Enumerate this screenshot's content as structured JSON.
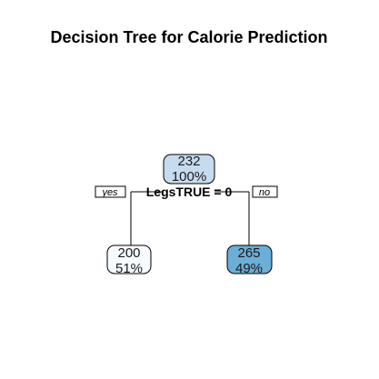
{
  "title": "Decision Tree for Calorie Prediction",
  "tree": {
    "root": {
      "value": "232",
      "percent": "100%",
      "fill": "#c6dbef"
    },
    "split": {
      "label": "LegsTRUE = 0",
      "yes_label": "yes",
      "no_label": "no"
    },
    "left": {
      "value": "200",
      "percent": "51%",
      "fill": "#f7fbff"
    },
    "right": {
      "value": "265",
      "percent": "49%",
      "fill": "#6baed6"
    }
  }
}
